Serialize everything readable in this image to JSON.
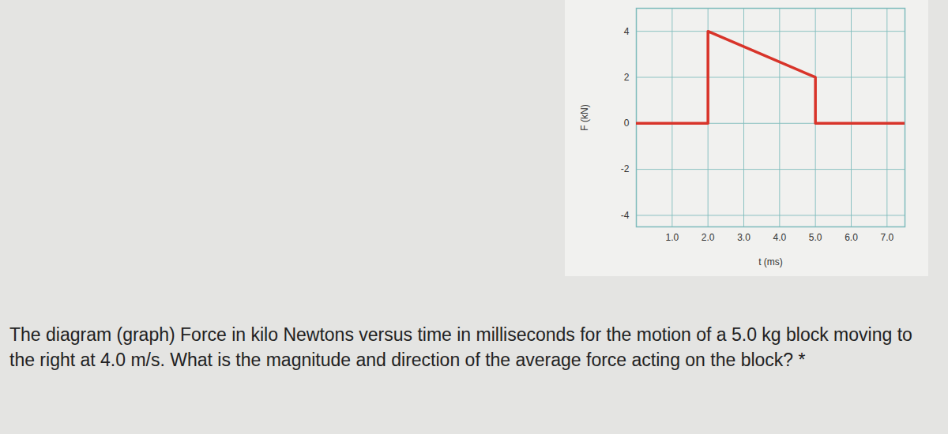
{
  "chart_data": {
    "type": "line",
    "x": [
      0,
      2.0,
      2.0,
      5.0,
      5.0,
      7.5
    ],
    "values": [
      0,
      0,
      4,
      2,
      0,
      0
    ],
    "color": "#d8342a",
    "xlabel": "t (ms)",
    "ylabel": "F (kN)",
    "xlim": [
      0,
      7.5
    ],
    "ylim": [
      -4.5,
      5
    ],
    "xticks": [
      {
        "value": 1,
        "label": "1.0"
      },
      {
        "value": 2,
        "label": "2.0"
      },
      {
        "value": 3,
        "label": "3.0"
      },
      {
        "value": 4,
        "label": "4.0"
      },
      {
        "value": 5,
        "label": "5.0"
      },
      {
        "value": 6,
        "label": "6.0"
      },
      {
        "value": 7,
        "label": "7.0"
      }
    ],
    "yticks": [
      -4,
      -2,
      0,
      2,
      4
    ],
    "grid": true,
    "caption": "The diagram (graph) Force in kilo Newtons versus time in milliseconds for the motion of a 5.0 kg block moving to the right at 4.0 m/s. What is the magnitude and direction of the average force acting on the block? *"
  }
}
